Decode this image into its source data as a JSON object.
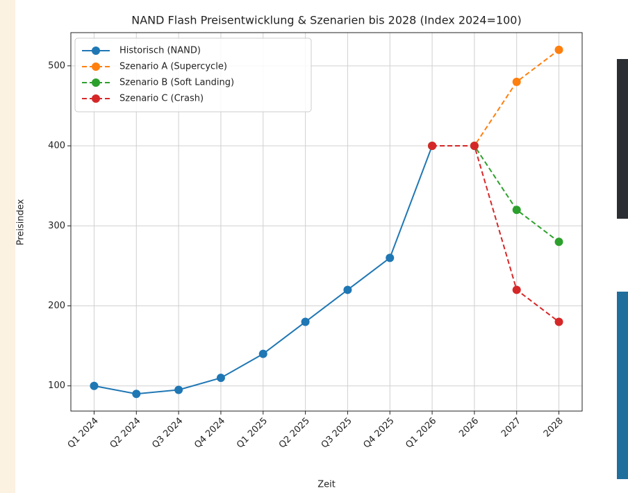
{
  "chart_data": {
    "type": "line",
    "title": "NAND Flash Preisentwicklung & Szenarien bis 2028 (Index 2024=100)",
    "x_label": "Zeit",
    "y_label": "Preisindex",
    "categories": [
      "Q1 2024",
      "Q2 2024",
      "Q3 2024",
      "Q4 2024",
      "Q1 2025",
      "Q2 2025",
      "Q3 2025",
      "Q4 2025",
      "Q1 2026",
      "2026",
      "2027",
      "2028"
    ],
    "series": [
      {
        "name": "Historisch (NAND)",
        "color": "#1f77b4",
        "linestyle": "solid",
        "values": [
          100,
          90,
          95,
          110,
          140,
          180,
          220,
          260,
          400,
          null,
          null,
          null
        ]
      },
      {
        "name": "Szenario A (Supercycle)",
        "color": "#ff7f0e",
        "linestyle": "dashed",
        "values": [
          null,
          null,
          null,
          null,
          null,
          null,
          null,
          null,
          400,
          400,
          480,
          520
        ]
      },
      {
        "name": "Szenario B (Soft Landing)",
        "color": "#2ca02c",
        "linestyle": "dashed",
        "values": [
          null,
          null,
          null,
          null,
          null,
          null,
          null,
          null,
          400,
          400,
          320,
          280
        ]
      },
      {
        "name": "Szenario C (Crash)",
        "color": "#d62728",
        "linestyle": "dashed",
        "values": [
          null,
          null,
          null,
          null,
          null,
          null,
          null,
          null,
          400,
          400,
          220,
          180
        ]
      }
    ],
    "ylim": [
      68.5,
      541.5
    ],
    "yticks": [
      100,
      200,
      300,
      400,
      500
    ],
    "grid": true,
    "legend": "upper left"
  }
}
